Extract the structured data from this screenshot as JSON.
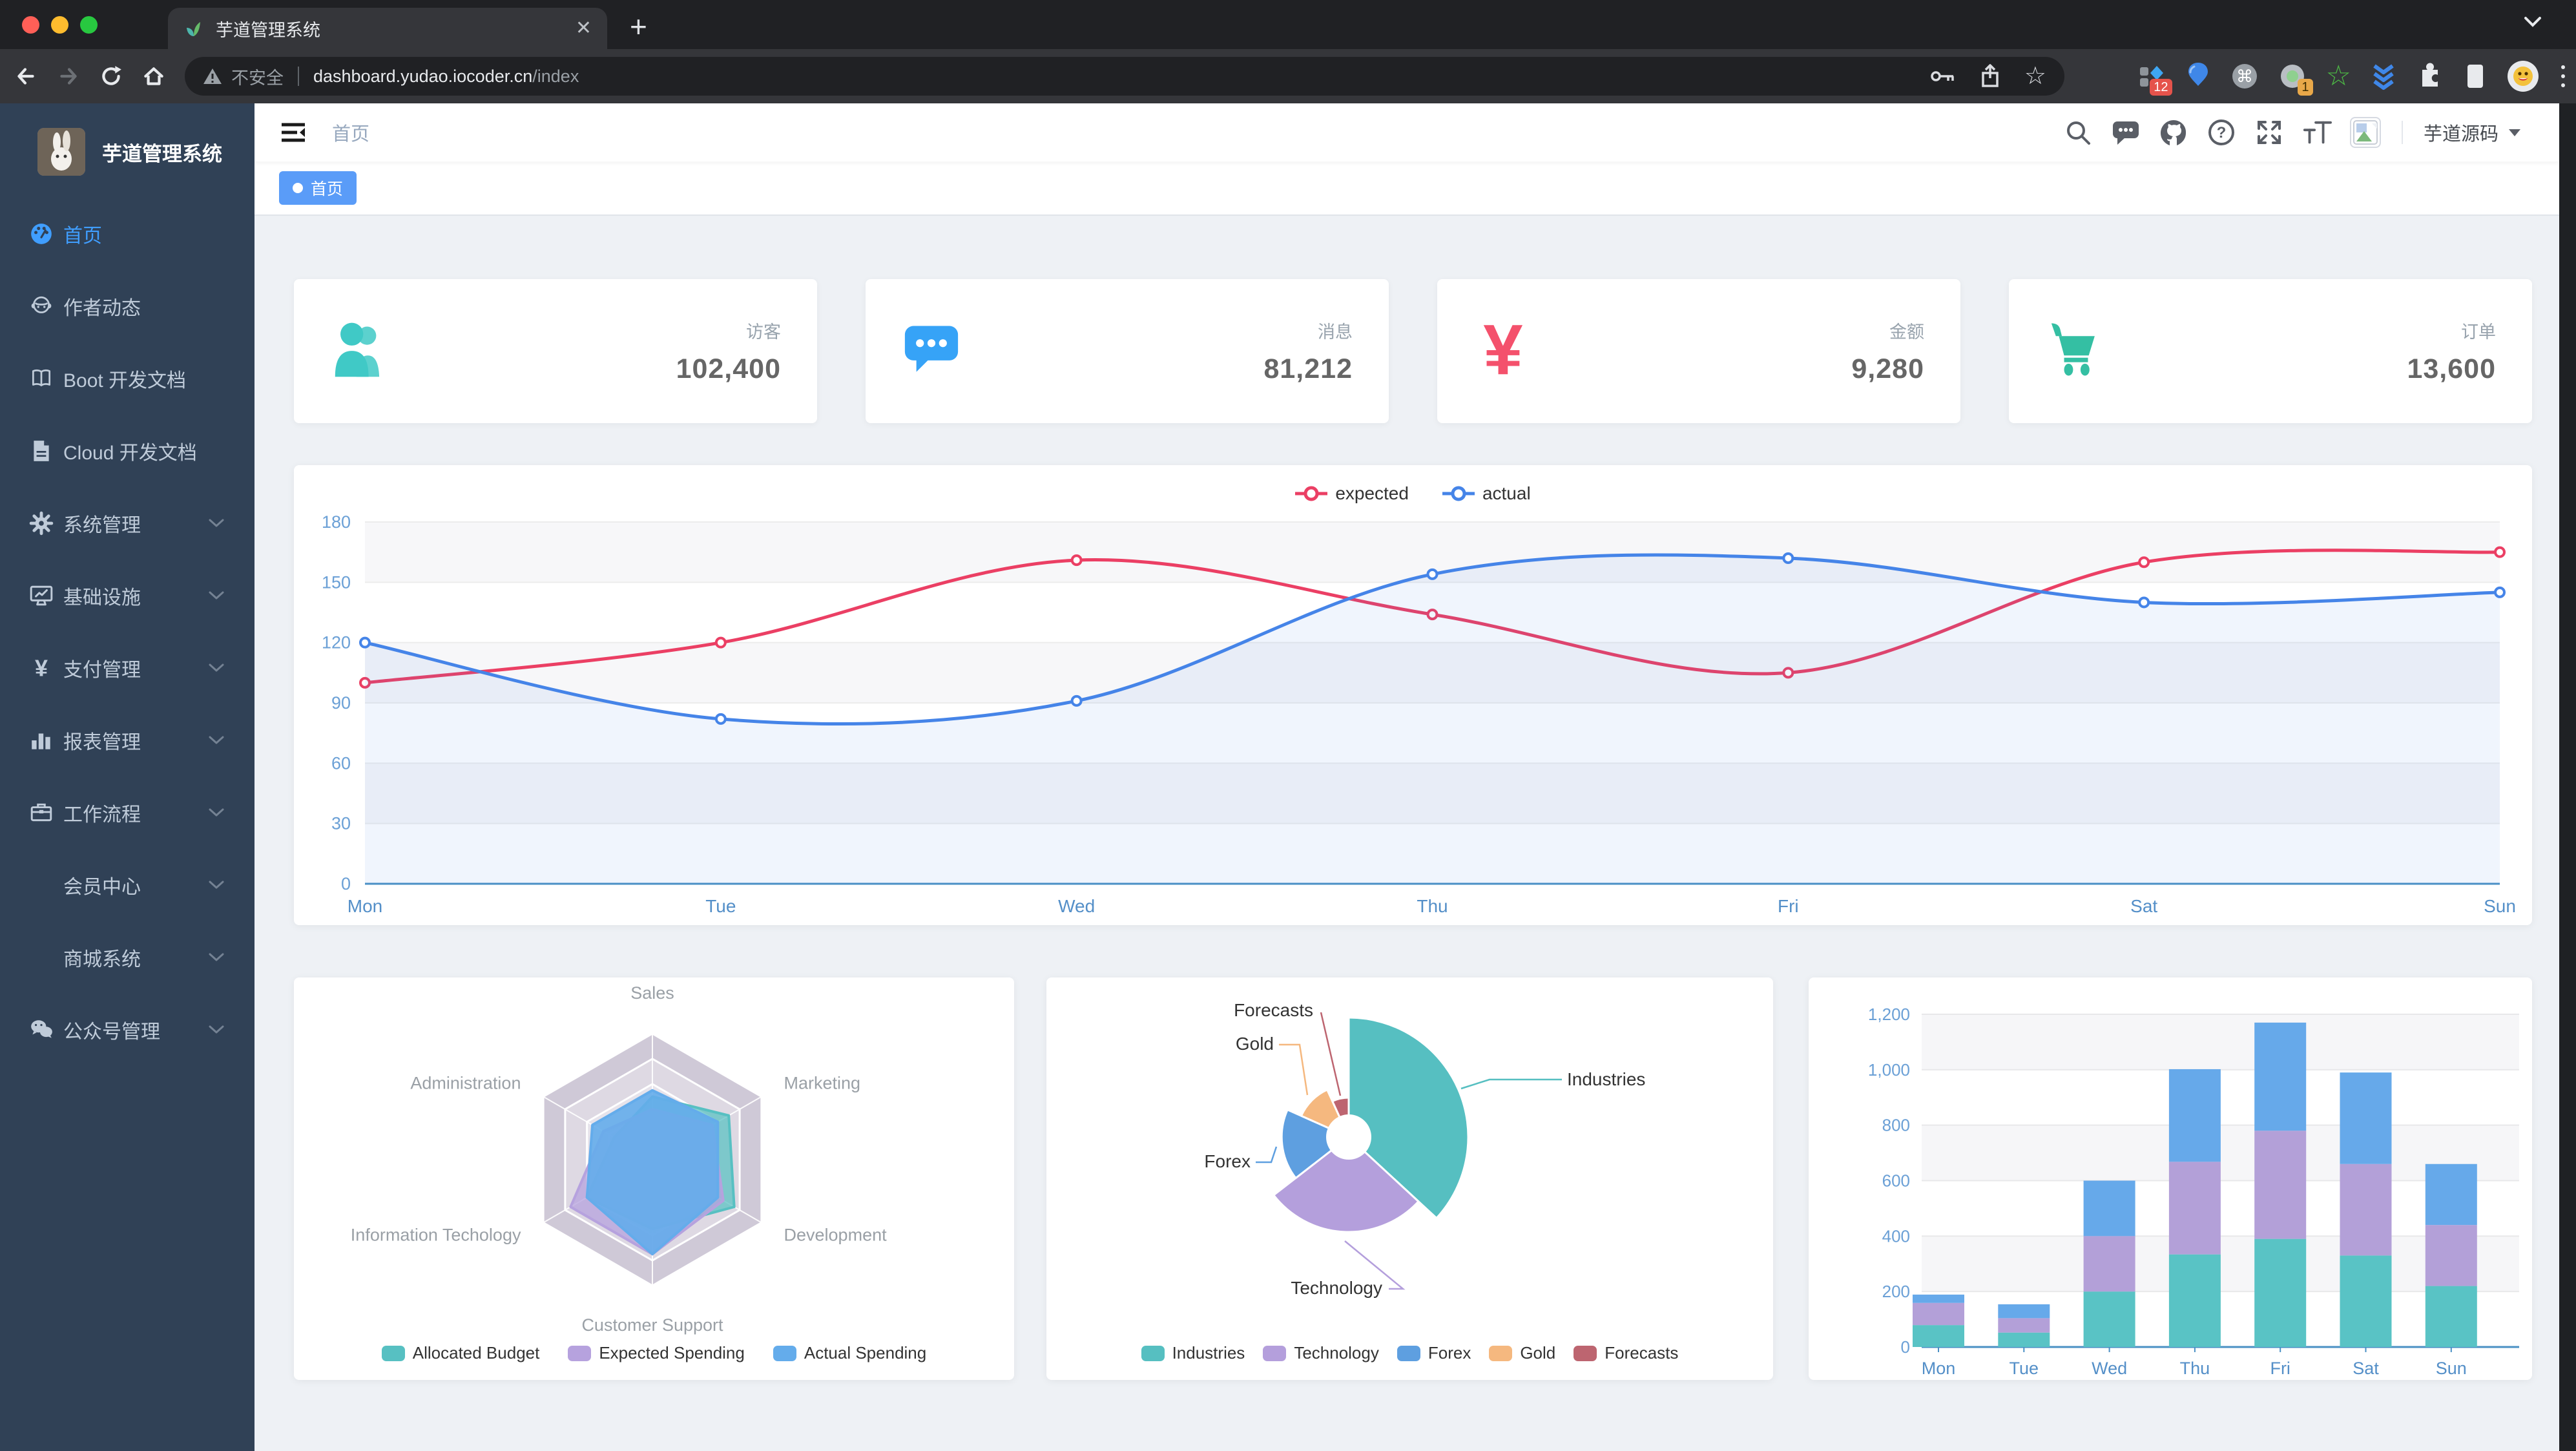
{
  "browser": {
    "tab_title": "芋道管理系统",
    "url_security": "不安全",
    "url_host": "dashboard.yudao.iocoder.cn",
    "url_path": "/index",
    "ext_badge_1": "12",
    "ext_badge_2": "1"
  },
  "sidebar": {
    "title": "芋道管理系统",
    "items": [
      {
        "icon": "dashboard-icon",
        "label": "首页",
        "active": true,
        "arrow": false,
        "indent": false
      },
      {
        "icon": "people-icon",
        "label": "作者动态",
        "active": false,
        "arrow": false,
        "indent": false
      },
      {
        "icon": "book-icon",
        "label": "Boot 开发文档",
        "active": false,
        "arrow": false,
        "indent": false
      },
      {
        "icon": "document-icon",
        "label": "Cloud 开发文档",
        "active": false,
        "arrow": false,
        "indent": false
      },
      {
        "icon": "gear-icon",
        "label": "系统管理",
        "active": false,
        "arrow": true,
        "indent": false
      },
      {
        "icon": "monitor-icon",
        "label": "基础设施",
        "active": false,
        "arrow": true,
        "indent": false
      },
      {
        "icon": "yen-icon",
        "label": "支付管理",
        "active": false,
        "arrow": true,
        "indent": false
      },
      {
        "icon": "chart-icon",
        "label": "报表管理",
        "active": false,
        "arrow": true,
        "indent": false
      },
      {
        "icon": "briefcase-icon",
        "label": "工作流程",
        "active": false,
        "arrow": true,
        "indent": false
      },
      {
        "icon": "",
        "label": "会员中心",
        "active": false,
        "arrow": true,
        "indent": true
      },
      {
        "icon": "",
        "label": "商城系统",
        "active": false,
        "arrow": true,
        "indent": true
      },
      {
        "icon": "wechat-icon",
        "label": "公众号管理",
        "active": false,
        "arrow": true,
        "indent": false
      }
    ]
  },
  "header": {
    "breadcrumb": "首页",
    "username": "芋道源码"
  },
  "tagbar": {
    "tags": [
      {
        "label": "首页",
        "active": true
      }
    ]
  },
  "cards": [
    {
      "label": "访客",
      "value": "102,400",
      "icon": "peoples-icon",
      "color": "#40c9c6"
    },
    {
      "label": "消息",
      "value": "81,212",
      "icon": "message-icon",
      "color": "#36a3f7"
    },
    {
      "label": "金额",
      "value": "9,280",
      "icon": "money-icon",
      "color": "#f4516c"
    },
    {
      "label": "订单",
      "value": "13,600",
      "icon": "cart-icon",
      "color": "#34bfa3"
    }
  ],
  "chart_data": [
    {
      "id": "line",
      "type": "line",
      "categories": [
        "Mon",
        "Tue",
        "Wed",
        "Thu",
        "Fri",
        "Sat",
        "Sun"
      ],
      "series": [
        {
          "name": "expected",
          "color": "#eb3f64",
          "values": [
            100,
            120,
            161,
            134,
            105,
            160,
            165
          ]
        },
        {
          "name": "actual",
          "color": "#4584e8",
          "values": [
            120,
            82,
            91,
            154,
            162,
            140,
            145
          ],
          "area": "rgba(69,132,232,0.08)"
        }
      ],
      "ylim": [
        0,
        180
      ],
      "ytick": 30,
      "grid": true,
      "legend_position": "top"
    },
    {
      "id": "radar",
      "type": "radar",
      "indicators": [
        {
          "name": "Sales",
          "max": 10000
        },
        {
          "name": "Marketing",
          "max": 20000
        },
        {
          "name": "Development",
          "max": 20000
        },
        {
          "name": "Customer Support",
          "max": 20000
        },
        {
          "name": "Information Techology",
          "max": 20000
        },
        {
          "name": "Administration",
          "max": 20000
        }
      ],
      "series": [
        {
          "name": "Allocated Budget",
          "color": "#57c0c2",
          "values": [
            5000,
            14000,
            15000,
            11000,
            12000,
            7000
          ]
        },
        {
          "name": "Expected Spending",
          "color": "#b6a2de",
          "values": [
            4000,
            11000,
            13000,
            15000,
            15000,
            9000
          ]
        },
        {
          "name": "Actual Spending",
          "color": "#64aceb",
          "values": [
            5500,
            12000,
            12000,
            15000,
            12000,
            11000
          ]
        }
      ],
      "legend_position": "bottom"
    },
    {
      "id": "pie",
      "type": "pie",
      "rose": true,
      "slices": [
        {
          "name": "Industries",
          "value": 320,
          "color": "#56bfc1"
        },
        {
          "name": "Technology",
          "value": 240,
          "color": "#b49fdc"
        },
        {
          "name": "Forex",
          "value": 149,
          "color": "#5e9fe0"
        },
        {
          "name": "Gold",
          "value": 100,
          "color": "#f5b87f"
        },
        {
          "name": "Forecasts",
          "value": 59,
          "color": "#bd6570"
        }
      ],
      "legend_position": "bottom"
    },
    {
      "id": "bar",
      "type": "bar",
      "stacked": true,
      "categories": [
        "Mon",
        "Tue",
        "Wed",
        "Thu",
        "Fri",
        "Sat",
        "Sun"
      ],
      "series": [
        {
          "color": "#59c3c5",
          "values": [
            79,
            52,
            200,
            334,
            390,
            330,
            220
          ]
        },
        {
          "color": "#b3a0d8",
          "values": [
            80,
            52,
            200,
            334,
            390,
            330,
            220
          ]
        },
        {
          "color": "#66a9ea",
          "values": [
            30,
            50,
            200,
            334,
            390,
            330,
            220
          ]
        }
      ],
      "ylim": [
        0,
        1200
      ],
      "ytick": 200,
      "grid": true
    }
  ]
}
